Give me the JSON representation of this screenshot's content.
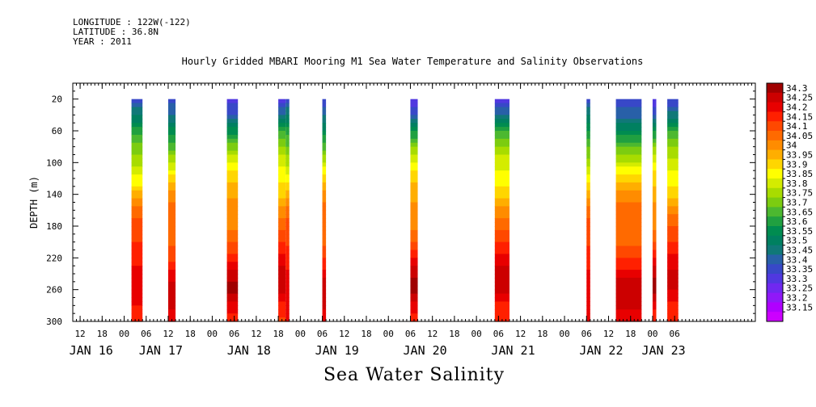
{
  "header": {
    "longitude": "LONGITUDE : 122W(-122)",
    "latitude": "LATITUDE : 36.8N",
    "year": "YEAR : 2011",
    "title": "Hourly Gridded MBARI Mooring M1 Sea Water Temperature and Salinity Observations"
  },
  "footer": {
    "title": "Sea Water Salinity"
  },
  "chart_data": {
    "type": "heatmap",
    "title": "Hourly Gridded MBARI Mooring M1 Sea Water Temperature and Salinity Observations",
    "xlabel": "",
    "ylabel": "DEPTH (m)",
    "x_range_hours": [
      -14,
      172
    ],
    "x_origin": "2011-01-16 00:00",
    "x_tick_labels": [
      "12",
      "18",
      "00",
      "06",
      "12",
      "18",
      "00",
      "06",
      "12",
      "18",
      "00",
      "06",
      "12",
      "18",
      "00",
      "06",
      "12",
      "18",
      "00",
      "06",
      "12",
      "18",
      "00",
      "06",
      "12",
      "18",
      "00",
      "06"
    ],
    "x_tick_hours": [
      -12,
      -6,
      0,
      6,
      12,
      18,
      24,
      30,
      36,
      42,
      48,
      54,
      60,
      66,
      72,
      78,
      84,
      90,
      96,
      102,
      108,
      114,
      120,
      126,
      132,
      138,
      144,
      150
    ],
    "x_day_labels": [
      "JAN 16",
      "JAN 17",
      "JAN 18",
      "JAN 19",
      "JAN 20",
      "JAN 21",
      "JAN 22",
      "JAN 23"
    ],
    "x_day_label_hours": [
      -9,
      10,
      34,
      58,
      82,
      106,
      130,
      147
    ],
    "y_ticks": [
      20,
      60,
      100,
      140,
      180,
      220,
      260,
      300
    ],
    "y_range": [
      0,
      300
    ],
    "y_inverted": true,
    "colorbar": {
      "levels": [
        "34.3",
        "34.25",
        "34.2",
        "34.15",
        "34.1",
        "34.05",
        "34",
        "33.95",
        "33.9",
        "33.85",
        "33.8",
        "33.75",
        "33.7",
        "33.65",
        "33.6",
        "33.55",
        "33.5",
        "33.45",
        "33.4",
        "33.35",
        "33.3",
        "33.25",
        "33.2",
        "33.15"
      ],
      "colors": [
        "#a00000",
        "#cc0000",
        "#e80000",
        "#ff2000",
        "#ff4800",
        "#ff6a00",
        "#ff8c00",
        "#ffae00",
        "#ffd600",
        "#ffff00",
        "#d4ec00",
        "#a8dc00",
        "#7ccc10",
        "#4cb830",
        "#20a040",
        "#008c50",
        "#008060",
        "#107878",
        "#2860a8",
        "#3848c8",
        "#5038e0",
        "#7028f0",
        "#9018f8",
        "#b000ff"
      ],
      "bottom_color": "#cc00ff"
    },
    "observation_windows_hours": [
      [
        2,
        5
      ],
      [
        12,
        14
      ],
      [
        28,
        31
      ],
      [
        42,
        44
      ],
      [
        44,
        45
      ],
      [
        54,
        55
      ],
      [
        78,
        80
      ],
      [
        101,
        105
      ],
      [
        126,
        127
      ],
      [
        134,
        141
      ],
      [
        144,
        145
      ],
      [
        148,
        151
      ]
    ],
    "salinity_profile": {
      "depths": [
        20,
        40,
        60,
        80,
        100,
        120,
        140,
        160,
        180,
        200,
        220,
        240,
        260,
        280,
        300
      ],
      "values": [
        33.35,
        33.45,
        33.6,
        33.72,
        33.82,
        33.9,
        33.98,
        34.05,
        34.08,
        34.12,
        34.18,
        34.25,
        34.28,
        34.22,
        34.18
      ]
    }
  }
}
